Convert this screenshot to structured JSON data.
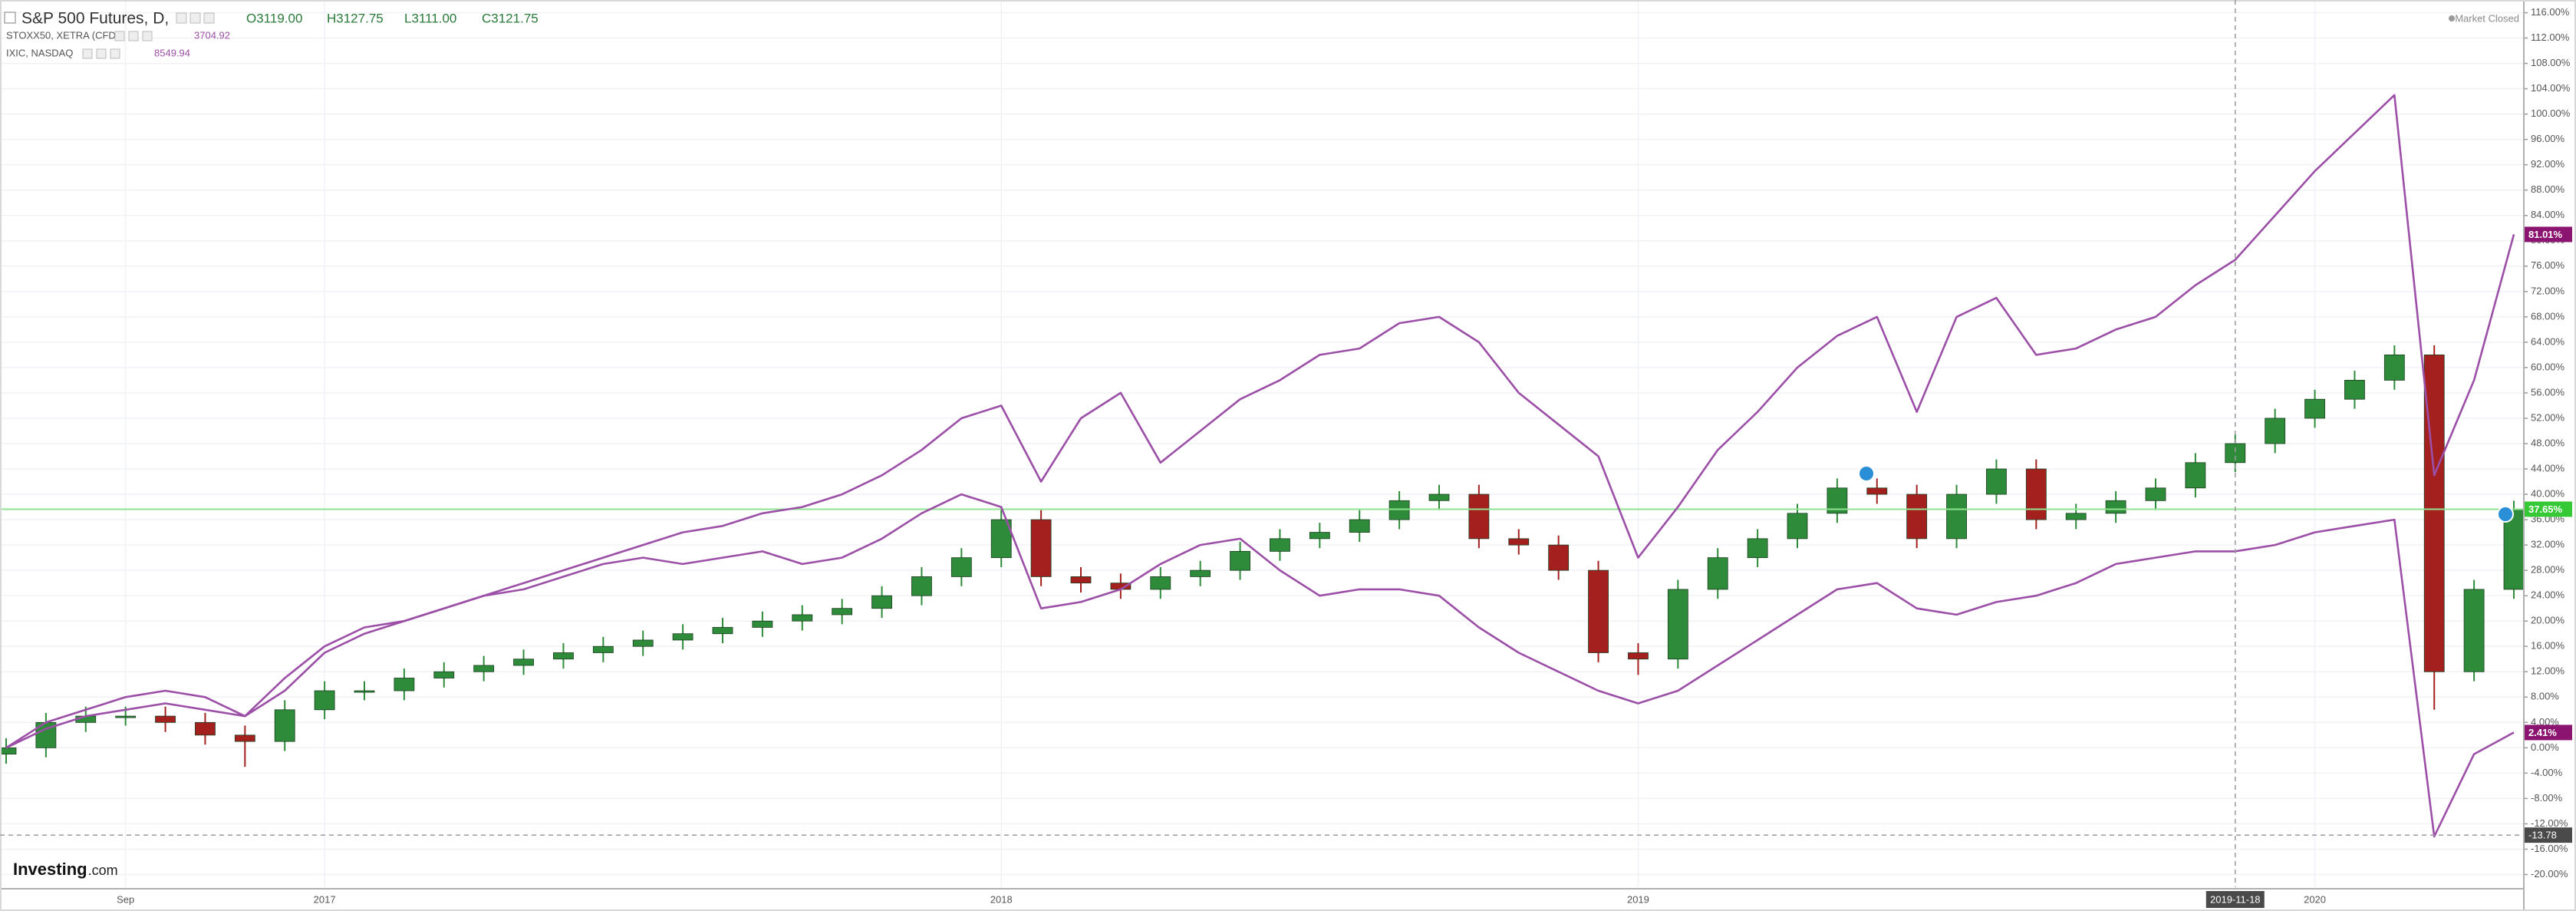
{
  "chart_data": {
    "type": "candlestick",
    "market_status": "Market Closed",
    "logo": {
      "name": "Investing",
      "suffix": ".com"
    },
    "categories": [
      null,
      null,
      null,
      "Sep",
      null,
      null,
      null,
      null,
      "2017",
      null,
      null,
      null,
      null,
      null,
      null,
      null,
      null,
      null,
      null,
      null,
      null,
      null,
      null,
      null,
      null,
      "2018",
      null,
      null,
      null,
      null,
      null,
      null,
      null,
      null,
      null,
      null,
      null,
      null,
      null,
      null,
      null,
      "2019",
      null,
      null,
      null,
      null,
      null,
      null,
      null,
      null,
      null,
      null,
      null,
      null,
      null,
      null,
      null,
      null,
      "2020",
      null,
      null,
      null,
      null,
      null
    ],
    "ylim": [
      -22,
      118
    ],
    "yticks": [
      {
        "value": 116,
        "label": "116.00%"
      },
      {
        "value": 112,
        "label": "112.00%"
      },
      {
        "value": 108,
        "label": "108.00%"
      },
      {
        "value": 104,
        "label": "104.00%"
      },
      {
        "value": 100,
        "label": "100.00%"
      },
      {
        "value": 96,
        "label": "96.00%"
      },
      {
        "value": 92,
        "label": "92.00%"
      },
      {
        "value": 88,
        "label": "88.00%"
      },
      {
        "value": 84,
        "label": "84.00%"
      },
      {
        "value": 80,
        "label": "80.00%"
      },
      {
        "value": 76,
        "label": "76.00%"
      },
      {
        "value": 72,
        "label": "72.00%"
      },
      {
        "value": 68,
        "label": "68.00%"
      },
      {
        "value": 64,
        "label": "64.00%"
      },
      {
        "value": 60,
        "label": "60.00%"
      },
      {
        "value": 56,
        "label": "56.00%"
      },
      {
        "value": 52,
        "label": "52.00%"
      },
      {
        "value": 48,
        "label": "48.00%"
      },
      {
        "value": 44,
        "label": "44.00%"
      },
      {
        "value": 40,
        "label": "40.00%"
      },
      {
        "value": 36,
        "label": "36.00%"
      },
      {
        "value": 32,
        "label": "32.00%"
      },
      {
        "value": 28,
        "label": "28.00%"
      },
      {
        "value": 24,
        "label": "24.00%"
      },
      {
        "value": 20,
        "label": "20.00%"
      },
      {
        "value": 16,
        "label": "16.00%"
      },
      {
        "value": 12,
        "label": "12.00%"
      },
      {
        "value": 8,
        "label": "8.00%"
      },
      {
        "value": 4,
        "label": "4.00%"
      },
      {
        "value": 0,
        "label": "0.00%"
      },
      {
        "value": -4,
        "label": "-4.00%"
      },
      {
        "value": -8,
        "label": "-8.00%"
      },
      {
        "value": -12,
        "label": "-12.00%"
      },
      {
        "value": -16,
        "label": "-16.00%"
      },
      {
        "value": -20,
        "label": "-20.00%"
      }
    ],
    "grid": true,
    "crosshair": {
      "x": "2019-11-18",
      "y": -13.78
    },
    "series": [
      {
        "name": "S&P 500 Futures, D,",
        "type": "candlestick",
        "ohlc_labels": [
          "O3119.00",
          "H3127.75",
          "L3111.00",
          "C3121.75"
        ],
        "up_color": "#2e8b3a",
        "down_color": "#a3201f",
        "last_label": "37.65%",
        "last_color": "#35c935",
        "open": [
          -1,
          0,
          4,
          5,
          5,
          4,
          2,
          1,
          6,
          9,
          9,
          11,
          12,
          13,
          14,
          15,
          16,
          17,
          18,
          19,
          20,
          21,
          22,
          24,
          27,
          30,
          36,
          27,
          26,
          25,
          27,
          28,
          31,
          33,
          34,
          36,
          39,
          40,
          33,
          32,
          28,
          15,
          14,
          25,
          30,
          33,
          37,
          41,
          40,
          33,
          40,
          44,
          36,
          37,
          39,
          41,
          45,
          48,
          52,
          55,
          58,
          62,
          12,
          25
        ],
        "high": [
          1.5,
          5.5,
          6.5,
          6.5,
          6.5,
          5.5,
          3.5,
          7.5,
          10.5,
          10.5,
          12.5,
          13.5,
          14.5,
          15.5,
          16.5,
          17.5,
          18.5,
          19.5,
          20.5,
          21.5,
          22.5,
          23.5,
          25.5,
          28.5,
          31.5,
          38,
          37.5,
          28.5,
          27.5,
          28.5,
          29.5,
          32.5,
          34.5,
          35.5,
          37.5,
          40.5,
          41.5,
          41.5,
          34.5,
          33.5,
          29.5,
          16.5,
          26.5,
          31.5,
          34.5,
          38.5,
          42.5,
          42.5,
          41.5,
          41.5,
          45.5,
          45.5,
          38.5,
          40.5,
          42.5,
          46.5,
          49.5,
          53.5,
          56.5,
          59.5,
          63.5,
          63.5,
          26.5,
          39
        ],
        "low": [
          -2.5,
          -1.5,
          2.5,
          3.5,
          2.5,
          0.5,
          -3,
          -0.5,
          4.5,
          7.5,
          7.5,
          9.5,
          10.5,
          11.5,
          12.5,
          13.5,
          14.5,
          15.5,
          16.5,
          17.5,
          18.5,
          19.5,
          20.5,
          22.5,
          25.5,
          28.5,
          25.5,
          24.5,
          23.5,
          23.5,
          25.5,
          26.5,
          29.5,
          31.5,
          32.5,
          34.5,
          37.5,
          31.5,
          30.5,
          26.5,
          13.5,
          11.5,
          12.5,
          23.5,
          28.5,
          31.5,
          35.5,
          38.5,
          31.5,
          31.5,
          38.5,
          34.5,
          34.5,
          35.5,
          37.5,
          39.5,
          43.5,
          46.5,
          50.5,
          53.5,
          56.5,
          6,
          10.5,
          23.5
        ],
        "close": [
          0,
          4,
          5,
          5,
          4,
          2,
          1,
          6,
          9,
          9,
          11,
          12,
          13,
          14,
          15,
          16,
          17,
          18,
          19,
          20,
          21,
          22,
          24,
          27,
          30,
          36,
          27,
          26,
          25,
          27,
          28,
          31,
          33,
          34,
          36,
          39,
          40,
          33,
          32,
          28,
          15,
          14,
          25,
          30,
          33,
          37,
          41,
          40,
          33,
          40,
          44,
          36,
          37,
          39,
          41,
          45,
          48,
          52,
          55,
          58,
          62,
          12,
          25,
          37.65
        ]
      },
      {
        "name": "STOXX50, XETRA (CFD)",
        "type": "line",
        "color": "#9c4fa6",
        "price": "3704.92",
        "last_label": "2.41%",
        "last_color": "#8b1470",
        "values": [
          0,
          3,
          5,
          6,
          7,
          6,
          5,
          9,
          15,
          18,
          20,
          22,
          24,
          25,
          27,
          29,
          30,
          29,
          30,
          31,
          29,
          30,
          33,
          37,
          40,
          38,
          22,
          23,
          25,
          29,
          32,
          33,
          28,
          24,
          25,
          25,
          24,
          19,
          15,
          12,
          9,
          7,
          9,
          13,
          17,
          21,
          25,
          26,
          22,
          21,
          23,
          24,
          26,
          29,
          30,
          31,
          31,
          32,
          34,
          35,
          36,
          -14,
          -1,
          2.41
        ]
      },
      {
        "name": "IXIC, NASDAQ",
        "type": "line",
        "color": "#9c4fa6",
        "price": "8549.94",
        "last_label": "81.01%",
        "last_color": "#8b1470",
        "values": [
          0,
          4,
          6,
          8,
          9,
          8,
          5,
          11,
          16,
          19,
          20,
          22,
          24,
          26,
          28,
          30,
          32,
          34,
          35,
          37,
          38,
          40,
          43,
          47,
          52,
          54,
          42,
          52,
          56,
          45,
          50,
          55,
          58,
          62,
          63,
          67,
          68,
          64,
          56,
          51,
          46,
          30,
          38,
          47,
          53,
          60,
          65,
          68,
          53,
          68,
          71,
          62,
          63,
          66,
          68,
          73,
          77,
          84,
          91,
          97,
          103,
          43,
          58,
          81.01
        ]
      }
    ]
  }
}
